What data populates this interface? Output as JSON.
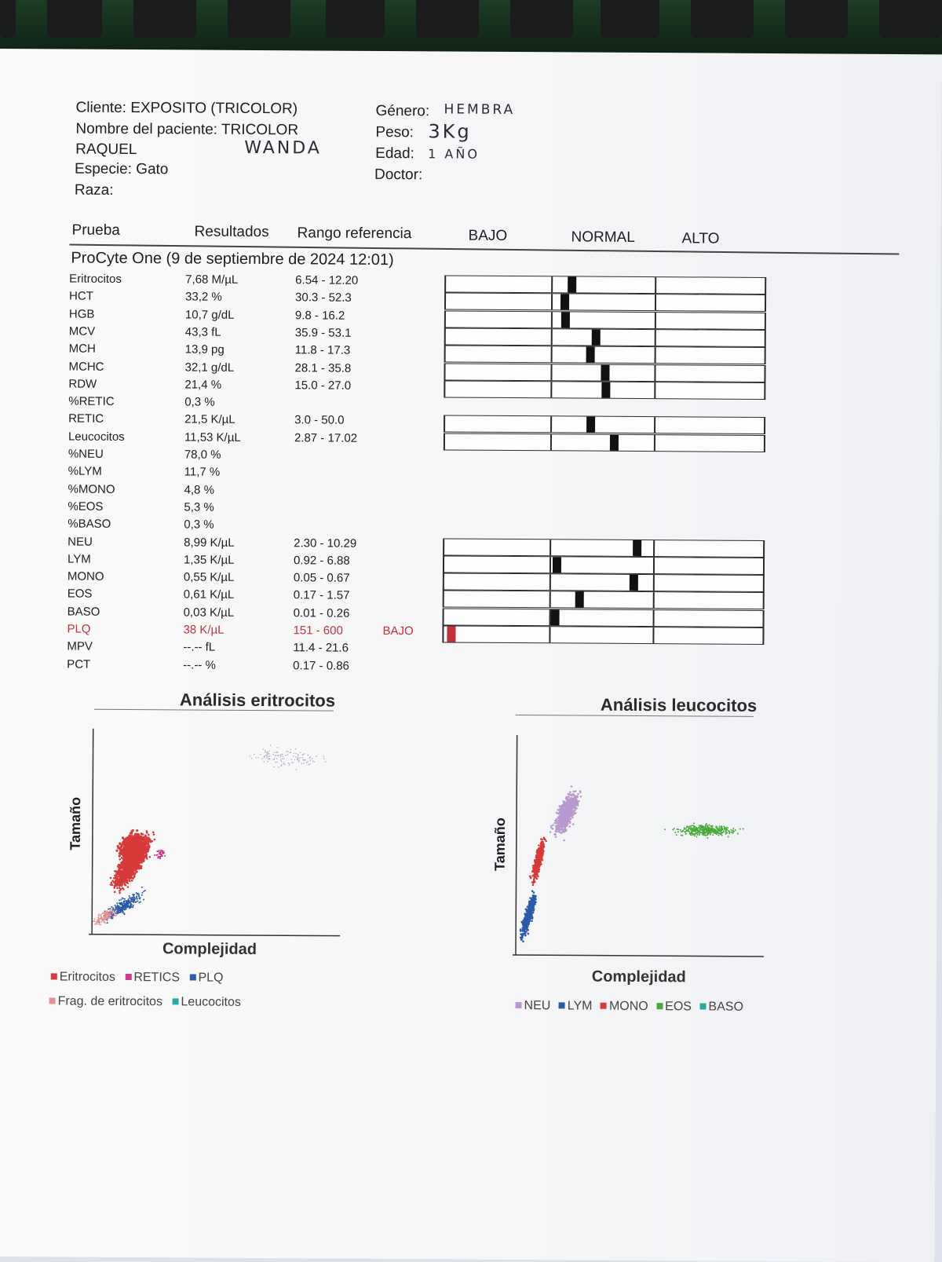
{
  "header": {
    "cliente": "Cliente: EXPOSITO (TRICOLOR)",
    "paciente": "Nombre del paciente: TRICOLOR",
    "paciente2": "RAQUEL",
    "paciente_hand": "WANDA",
    "especie": "Especie: Gato",
    "raza": "Raza:",
    "genero_label": "Género:",
    "genero_hand": "HEMBRA",
    "peso_label": "Peso:",
    "peso_hand": "3Kg",
    "edad_label": "Edad:",
    "edad_hand": "1 AÑO",
    "doctor_label": "Doctor:"
  },
  "columns": {
    "prueba": "Prueba",
    "resultados": "Resultados",
    "rango": "Rango referencia",
    "bajo": "BAJO",
    "normal": "NORMAL",
    "alto": "ALTO"
  },
  "section_title": "ProCyte One (9 de septiembre de 2024 12:01)",
  "rows": [
    {
      "name": "Eritrocitos",
      "value": "7,68 M/µL",
      "range": "6.54 - 12.20",
      "flag": "",
      "level": 0.2
    },
    {
      "name": "HCT",
      "value": "33,2 %",
      "range": "30.3 - 52.3",
      "flag": "",
      "level": 0.13
    },
    {
      "name": "HGB",
      "value": "10,7 g/dL",
      "range": "9.8 - 16.2",
      "flag": "",
      "level": 0.14
    },
    {
      "name": "MCV",
      "value": "43,3 fL",
      "range": "35.9 - 53.1",
      "flag": "",
      "level": 0.43
    },
    {
      "name": "MCH",
      "value": "13,9 pg",
      "range": "11.8 - 17.3",
      "flag": "",
      "level": 0.38
    },
    {
      "name": "MCHC",
      "value": "32,1 g/dL",
      "range": "28.1 - 35.8",
      "flag": "",
      "level": 0.52
    },
    {
      "name": "RDW",
      "value": "21,4 %",
      "range": "15.0 - 27.0",
      "flag": "",
      "level": 0.53
    },
    {
      "name": "%RETIC",
      "value": "0,3 %",
      "range": "",
      "flag": "",
      "level": null
    },
    {
      "name": "RETIC",
      "value": "21,5 K/µL",
      "range": "3.0 - 50.0",
      "flag": "",
      "level": 0.39
    },
    {
      "name": "Leucocitos",
      "value": "11,53 K/µL",
      "range": "2.87 - 17.02",
      "flag": "",
      "level": 0.61
    },
    {
      "name": "%NEU",
      "value": "78,0 %",
      "range": "",
      "flag": "",
      "level": null
    },
    {
      "name": "%LYM",
      "value": "11,7 %",
      "range": "",
      "flag": "",
      "level": null
    },
    {
      "name": "%MONO",
      "value": "4,8 %",
      "range": "",
      "flag": "",
      "level": null
    },
    {
      "name": "%EOS",
      "value": "5,3 %",
      "range": "",
      "flag": "",
      "level": null
    },
    {
      "name": "%BASO",
      "value": "0,3 %",
      "range": "",
      "flag": "",
      "level": null
    },
    {
      "name": "NEU",
      "value": "8,99 K/µL",
      "range": "2.30 - 10.29",
      "flag": "",
      "level": 0.84
    },
    {
      "name": "LYM",
      "value": "1,35 K/µL",
      "range": "0.92 - 6.88",
      "flag": "",
      "level": 0.07
    },
    {
      "name": "MONO",
      "value": "0,55 K/µL",
      "range": "0.05 - 0.67",
      "flag": "",
      "level": 0.81
    },
    {
      "name": "EOS",
      "value": "0,61 K/µL",
      "range": "0.17 - 1.57",
      "flag": "",
      "level": 0.29
    },
    {
      "name": "BASO",
      "value": "0,03 K/µL",
      "range": "0.01 - 0.26",
      "flag": "",
      "level": 0.05
    },
    {
      "name": "PLQ",
      "value": "38 K/µL",
      "range": "151 - 600",
      "flag": "BAJO",
      "level": -0.3
    },
    {
      "name": "MPV",
      "value": "--.-- fL",
      "range": "11.4 - 21.6",
      "flag": "",
      "level": null
    },
    {
      "name": "PCT",
      "value": "--.-- %",
      "range": "0.17 - 0.86",
      "flag": "",
      "level": null
    }
  ],
  "plots": {
    "eritro": {
      "title": "Análisis eritrocitos",
      "ylabel": "Tamaño",
      "xlabel": "Complejidad",
      "legend": [
        {
          "label": "Eritrocitos",
          "color": "#d63a3a"
        },
        {
          "label": "RETICS",
          "color": "#c83c8c"
        },
        {
          "label": "PLQ",
          "color": "#2a5aa8"
        },
        {
          "label": "Frag. de eritrocitos",
          "color": "#e89090"
        },
        {
          "label": "Leucocitos",
          "color": "#2aa8a0"
        }
      ]
    },
    "leuco": {
      "title": "Análisis leucocitos",
      "ylabel": "Tamaño",
      "xlabel": "Complejidad",
      "legend": [
        {
          "label": "NEU",
          "color": "#b89ad0"
        },
        {
          "label": "LYM",
          "color": "#2a5aa8"
        },
        {
          "label": "MONO",
          "color": "#d63a3a"
        },
        {
          "label": "EOS",
          "color": "#4aa83a"
        },
        {
          "label": "BASO",
          "color": "#2aa8a0"
        }
      ]
    }
  }
}
